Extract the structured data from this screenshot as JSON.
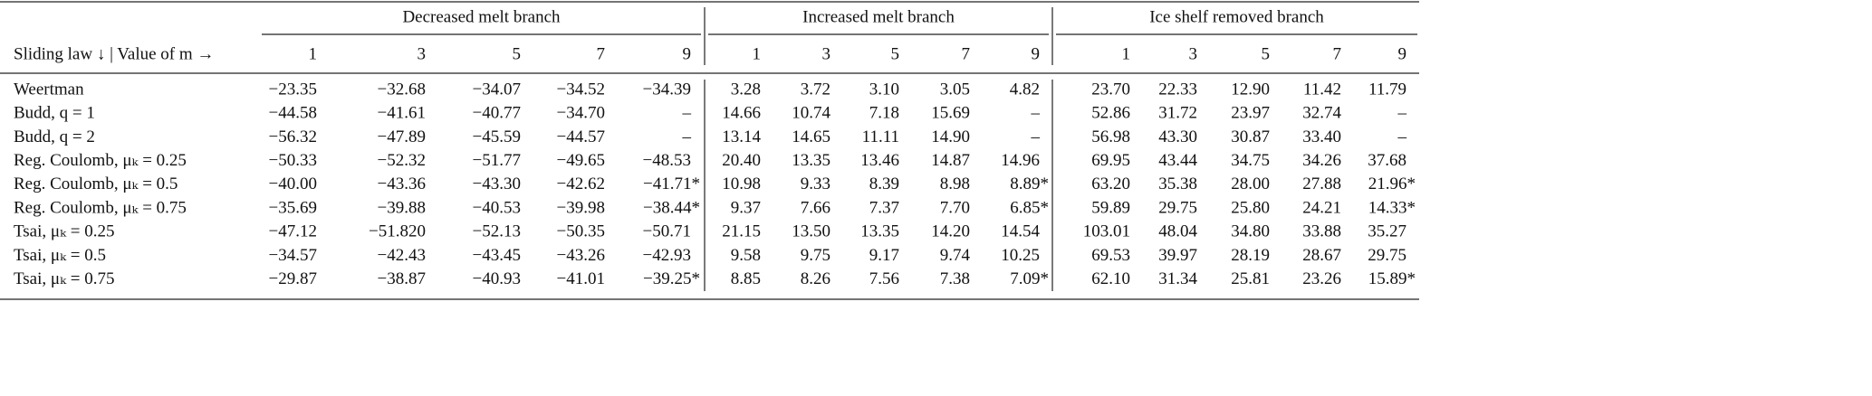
{
  "table": {
    "row_header": "Sliding law ↓ | Value of m →",
    "groups": [
      {
        "title": "Decreased melt branch",
        "columns": [
          "1",
          "3",
          "5",
          "7",
          "9"
        ]
      },
      {
        "title": "Increased melt branch",
        "columns": [
          "1",
          "3",
          "5",
          "7",
          "9"
        ]
      },
      {
        "title": "Ice shelf removed branch",
        "columns": [
          "1",
          "3",
          "5",
          "7",
          "9"
        ]
      }
    ],
    "rows": [
      {
        "label": "Weertman",
        "values": [
          "−23.35",
          "−32.68",
          "−34.07",
          "−34.52",
          "−34.39",
          "3.28",
          "3.72",
          "3.10",
          "3.05",
          "4.82",
          "23.70",
          "22.33",
          "12.90",
          "11.42",
          "11.79"
        ]
      },
      {
        "label": "Budd, q = 1",
        "values": [
          "−44.58",
          "−41.61",
          "−40.77",
          "−34.70",
          "–",
          "14.66",
          "10.74",
          "7.18",
          "15.69",
          "–",
          "52.86",
          "31.72",
          "23.97",
          "32.74",
          "–"
        ]
      },
      {
        "label": "Budd, q = 2",
        "values": [
          "−56.32",
          "−47.89",
          "−45.59",
          "−44.57",
          "–",
          "13.14",
          "14.65",
          "11.11",
          "14.90",
          "–",
          "56.98",
          "43.30",
          "30.87",
          "33.40",
          "–"
        ]
      },
      {
        "label": "Reg. Coulomb, μₖ = 0.25",
        "values": [
          "−50.33",
          "−52.32",
          "−51.77",
          "−49.65",
          "−48.53",
          "20.40",
          "13.35",
          "13.46",
          "14.87",
          "14.96",
          "69.95",
          "43.44",
          "34.75",
          "34.26",
          "37.68"
        ]
      },
      {
        "label": "Reg. Coulomb, μₖ = 0.5",
        "values": [
          "−40.00",
          "−43.36",
          "−43.30",
          "−42.62",
          "−41.71*",
          "10.98",
          "9.33",
          "8.39",
          "8.98",
          "8.89*",
          "63.20",
          "35.38",
          "28.00",
          "27.88",
          "21.96*"
        ]
      },
      {
        "label": "Reg. Coulomb, μₖ = 0.75",
        "values": [
          "−35.69",
          "−39.88",
          "−40.53",
          "−39.98",
          "−38.44*",
          "9.37",
          "7.66",
          "7.37",
          "7.70",
          "6.85*",
          "59.89",
          "29.75",
          "25.80",
          "24.21",
          "14.33*"
        ]
      },
      {
        "label": "Tsai, μₖ = 0.25",
        "values": [
          "−47.12",
          "−51.820",
          "−52.13",
          "−50.35",
          "−50.71",
          "21.15",
          "13.50",
          "13.35",
          "14.20",
          "14.54",
          "103.01",
          "48.04",
          "34.80",
          "33.88",
          "35.27"
        ]
      },
      {
        "label": "Tsai, μₖ = 0.5",
        "values": [
          "−34.57",
          "−42.43",
          "−43.45",
          "−43.26",
          "−42.93",
          "9.58",
          "9.75",
          "9.17",
          "9.74",
          "10.25",
          "69.53",
          "39.97",
          "28.19",
          "28.67",
          "29.75"
        ]
      },
      {
        "label": "Tsai, μₖ = 0.75",
        "values": [
          "−29.87",
          "−38.87",
          "−40.93",
          "−41.01",
          "−39.25*",
          "8.85",
          "8.26",
          "7.56",
          "7.38",
          "7.09*",
          "62.10",
          "31.34",
          "25.81",
          "23.26",
          "15.89*"
        ]
      }
    ]
  }
}
